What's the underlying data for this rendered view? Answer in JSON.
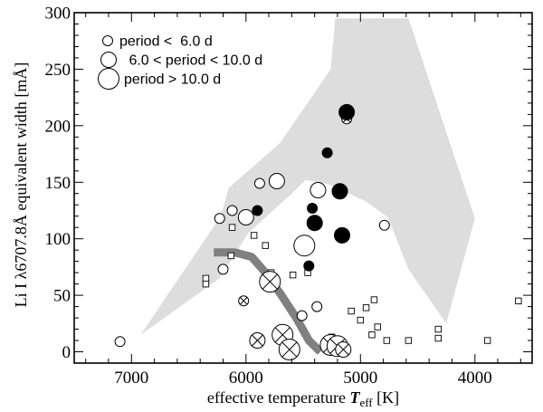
{
  "chart_data": {
    "type": "scatter",
    "xlabel_prefix": "effective temperature ",
    "xlabel_var": "T",
    "xlabel_sub": "eff",
    "xlabel_unit": " [K]",
    "ylabel": "Li I λ6707.8Å equivalent width [mÅ]",
    "xlim": [
      7500,
      3500
    ],
    "ylim": [
      -10,
      300
    ],
    "x_ticks": [
      7000,
      6000,
      5000,
      4000
    ],
    "x_tick_labels": [
      "7000",
      "6000",
      "5000",
      "4000"
    ],
    "x_minor_step": 200,
    "y_ticks": [
      0,
      50,
      100,
      150,
      200,
      250,
      300
    ],
    "y_tick_labels": [
      "0",
      "50",
      "100",
      "150",
      "200",
      "250",
      "300"
    ],
    "y_minor_step": 10,
    "legend": {
      "placement": "top-left",
      "entries": [
        {
          "label": "period <  6.0 d",
          "size": "small"
        },
        {
          "label": " 6.0 < period < 10.0 d",
          "size": "medium"
        },
        {
          "label": "period > 10.0 d",
          "size": "large"
        }
      ]
    },
    "envelope": {
      "name": "upper/lower envelope (grey region)",
      "color": "#dddddd",
      "points": [
        [
          6920,
          15
        ],
        [
          6230,
          65
        ],
        [
          5980,
          105
        ],
        [
          5600,
          140
        ],
        [
          5480,
          152
        ],
        [
          5270,
          148
        ],
        [
          5060,
          138
        ],
        [
          4950,
          133
        ],
        [
          4760,
          119
        ],
        [
          4580,
          73
        ],
        [
          4250,
          25
        ],
        [
          4000,
          118
        ],
        [
          4580,
          295
        ],
        [
          5220,
          295
        ],
        [
          5260,
          250
        ],
        [
          5700,
          185
        ],
        [
          6150,
          145
        ],
        [
          6220,
          120
        ]
      ]
    },
    "trend_line": {
      "name": "lithium depletion trend",
      "color": "#808080",
      "points": [
        [
          6280,
          88
        ],
        [
          6100,
          88
        ],
        [
          5950,
          84
        ],
        [
          5830,
          70
        ],
        [
          5690,
          50
        ],
        [
          5560,
          30
        ],
        [
          5450,
          10
        ],
        [
          5350,
          0
        ]
      ]
    },
    "series": [
      {
        "name": "open circles (detections)",
        "points": [
          {
            "teff": 7100,
            "w": 9,
            "size": "small"
          },
          {
            "teff": 6230,
            "w": 118,
            "size": "small"
          },
          {
            "teff": 6120,
            "w": 125,
            "size": "small"
          },
          {
            "teff": 6200,
            "w": 73,
            "size": "small"
          },
          {
            "teff": 6000,
            "w": 119,
            "size": "medium"
          },
          {
            "teff": 5880,
            "w": 149,
            "size": "small"
          },
          {
            "teff": 5730,
            "w": 151,
            "size": "medium"
          },
          {
            "teff": 5510,
            "w": 32,
            "size": "small"
          },
          {
            "teff": 5370,
            "w": 143,
            "size": "medium"
          },
          {
            "teff": 5380,
            "w": 40,
            "size": "small"
          },
          {
            "teff": 5490,
            "w": 94,
            "size": "large"
          },
          {
            "teff": 4790,
            "w": 112,
            "size": "small"
          }
        ]
      },
      {
        "name": "filled circles",
        "points": [
          {
            "teff": 5120,
            "w": 212,
            "size": "medium"
          },
          {
            "teff": 5290,
            "w": 176,
            "size": "small"
          },
          {
            "teff": 5180,
            "w": 142,
            "size": "medium"
          },
          {
            "teff": 5900,
            "w": 125,
            "size": "small"
          },
          {
            "teff": 5400,
            "w": 114,
            "size": "medium"
          },
          {
            "teff": 5160,
            "w": 103,
            "size": "medium"
          },
          {
            "teff": 5450,
            "w": 76,
            "size": "small"
          },
          {
            "teff": 5420,
            "w": 127,
            "size": "small"
          }
        ]
      },
      {
        "name": "crossed circles (upper limits)",
        "points": [
          {
            "teff": 5120,
            "w": 206,
            "size": "small"
          },
          {
            "teff": 6020,
            "w": 45,
            "size": "small"
          },
          {
            "teff": 5790,
            "w": 62,
            "size": "large"
          },
          {
            "teff": 5900,
            "w": 10,
            "size": "medium"
          },
          {
            "teff": 5680,
            "w": 15,
            "size": "large"
          },
          {
            "teff": 5620,
            "w": 2,
            "size": "large"
          },
          {
            "teff": 5260,
            "w": 6,
            "size": "large"
          },
          {
            "teff": 5200,
            "w": 5,
            "size": "large"
          },
          {
            "teff": 5150,
            "w": 2,
            "size": "medium"
          }
        ]
      },
      {
        "name": "squares (small stars)",
        "points": [
          {
            "teff": 6350,
            "w": 65
          },
          {
            "teff": 6350,
            "w": 60
          },
          {
            "teff": 6120,
            "w": 110
          },
          {
            "teff": 6130,
            "w": 85
          },
          {
            "teff": 5930,
            "w": 103
          },
          {
            "teff": 5830,
            "w": 94
          },
          {
            "teff": 5780,
            "w": 70
          },
          {
            "teff": 5590,
            "w": 68
          },
          {
            "teff": 5460,
            "w": 70
          },
          {
            "teff": 5250,
            "w": 13
          },
          {
            "teff": 5240,
            "w": 8
          },
          {
            "teff": 5080,
            "w": 36
          },
          {
            "teff": 5000,
            "w": 28
          },
          {
            "teff": 4950,
            "w": 39
          },
          {
            "teff": 4900,
            "w": 15
          },
          {
            "teff": 4880,
            "w": 46
          },
          {
            "teff": 4850,
            "w": 22
          },
          {
            "teff": 4770,
            "w": 10
          },
          {
            "teff": 4580,
            "w": 10
          },
          {
            "teff": 4320,
            "w": 12
          },
          {
            "teff": 4320,
            "w": 20
          },
          {
            "teff": 3890,
            "w": 10
          },
          {
            "teff": 3620,
            "w": 45
          }
        ]
      }
    ]
  }
}
